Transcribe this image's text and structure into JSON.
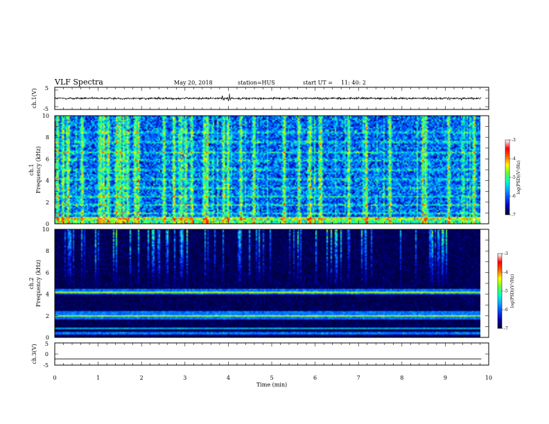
{
  "header": {
    "title": "VLF Spectra",
    "date": "May 20, 2018",
    "station": "station=HUS",
    "start_label": "start  UT  =",
    "start_time": "11: 40: 2"
  },
  "chart_data": [
    {
      "type": "line",
      "panel": "ch1-waveform",
      "ylabel": "ch.1(V)",
      "ylim": [
        -5,
        5
      ],
      "yticks": [
        "5",
        "-5"
      ],
      "xlim": [
        0,
        10
      ],
      "waveform": {
        "mean": 0.0,
        "amplitude_v": 0.8,
        "spike_x_min": [
          3.88,
          4.0,
          4.05
        ]
      }
    },
    {
      "type": "heatmap",
      "panel": "ch1-spectrogram",
      "ylabel_line1": "ch.1",
      "ylabel_line2": "Frequency (kHz)",
      "ylim": [
        0,
        10
      ],
      "yticks": [
        "0",
        "2",
        "4",
        "6",
        "8",
        "10"
      ],
      "xlim": [
        0,
        10
      ],
      "data_xmax_min": 9.83,
      "base_level": -6.0,
      "hum_bands_khz": [
        0.4,
        0.9,
        1.7,
        2.5,
        3.3,
        4.1,
        5.0,
        5.9,
        6.6,
        7.6,
        8.5
      ],
      "bursts_min": [
        0.05,
        0.18,
        0.3,
        0.62,
        1.05,
        1.12,
        1.22,
        1.42,
        1.5,
        1.58,
        1.67,
        1.85,
        1.92,
        2.52,
        2.75,
        2.92,
        3.02,
        3.16,
        3.45,
        3.52,
        3.9,
        4.0,
        4.3,
        4.6,
        5.3,
        5.65,
        5.9,
        6.15,
        6.8,
        7.2,
        7.75,
        8.52,
        8.58,
        9.12,
        9.7
      ],
      "colorbar": {
        "label": "log(PSD)(V²/Hz)",
        "range": [
          -7,
          -3
        ],
        "ticks": [
          "-3",
          "-4",
          "-5",
          "-6",
          "-7"
        ]
      }
    },
    {
      "type": "heatmap",
      "panel": "ch2-spectrogram",
      "ylabel_line1": "ch.2",
      "ylabel_line2": "Frequency (kHz)",
      "ylim": [
        0,
        10
      ],
      "yticks": [
        "0",
        "2",
        "4",
        "6",
        "8",
        "10"
      ],
      "xlim": [
        0,
        10
      ],
      "data_xmax_min": 9.83,
      "base_level": -7.0,
      "enhanced_bands_khz": [
        [
          3.9,
          4.5
        ],
        [
          1.6,
          2.4
        ],
        [
          0.2,
          0.5
        ]
      ],
      "line_khz": [
        0.8,
        2.0,
        4.2
      ],
      "colorbar": {
        "label": "log(PSD)(V²/Hz)",
        "range": [
          -7,
          -3
        ],
        "ticks": [
          "-3",
          "-4",
          "-5",
          "-6",
          "-7"
        ]
      }
    },
    {
      "type": "line",
      "panel": "ch3-waveform",
      "ylabel": "ch.3(V)",
      "ylim": [
        -5,
        5
      ],
      "yticks": [
        "5",
        "0",
        "-5"
      ],
      "xlim": [
        0,
        10
      ],
      "constant_value_v": -2.2
    }
  ],
  "x_axis": {
    "label": "Time  (min)",
    "ticks": [
      "0",
      "1",
      "2",
      "3",
      "4",
      "5",
      "6",
      "7",
      "8",
      "9",
      "10"
    ]
  },
  "colors": {
    "background": "#ffffff",
    "axes": "#000000",
    "colormap": [
      "#000033",
      "#0000aa",
      "#0044ff",
      "#00aaff",
      "#00ffcc",
      "#66ff33",
      "#ffff00",
      "#ff6600",
      "#ff0000",
      "#ffffff"
    ]
  }
}
